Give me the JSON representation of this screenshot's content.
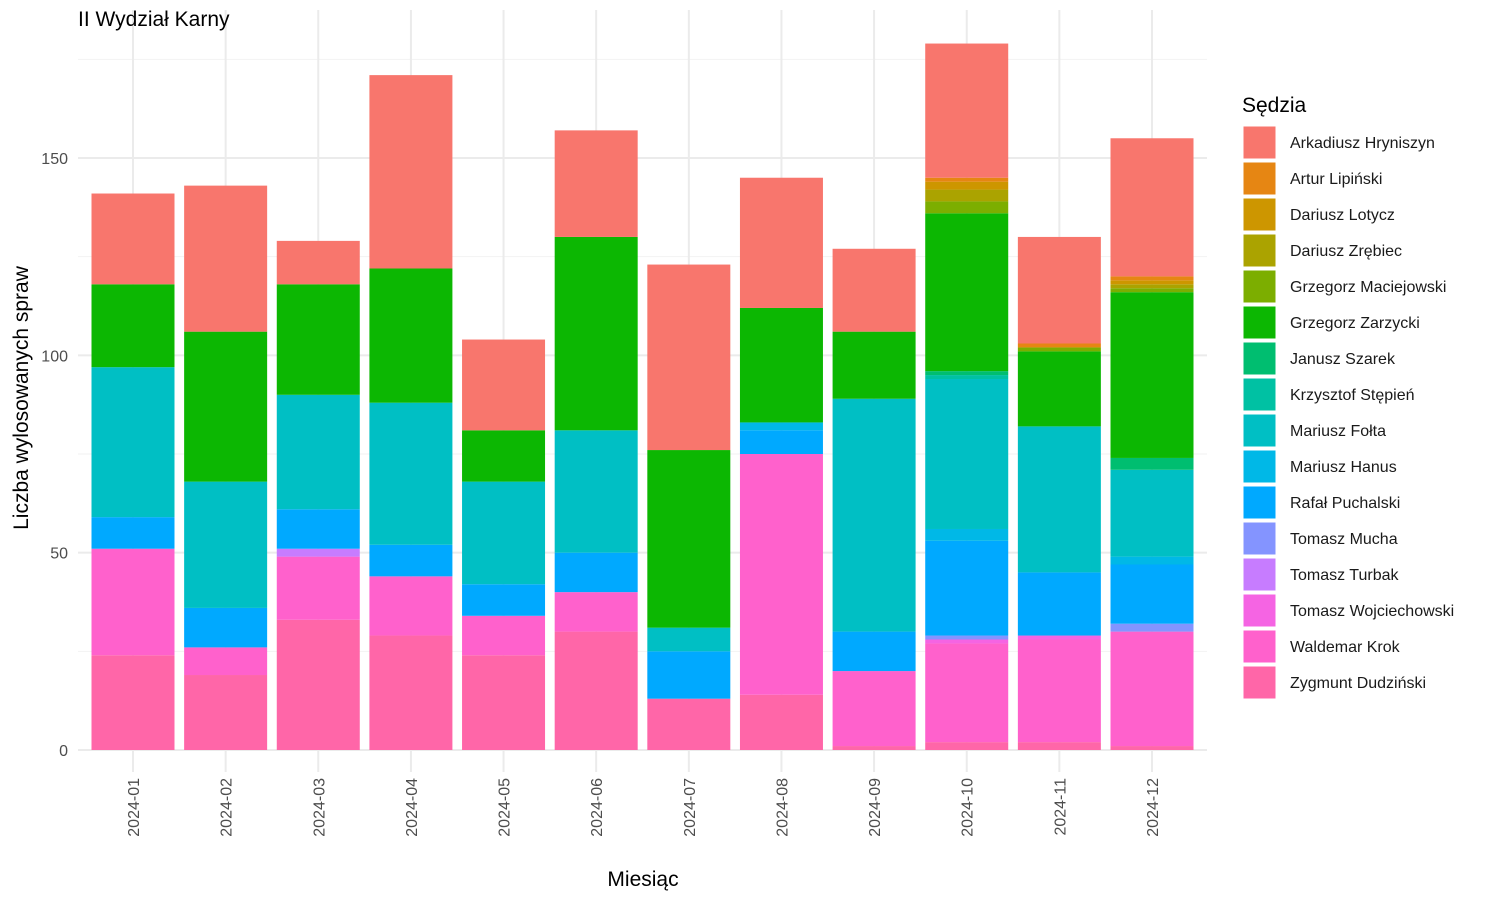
{
  "chart_data": {
    "type": "bar",
    "stacked": true,
    "title": "II Wydział Karny",
    "xlabel": "Miesiąc",
    "ylabel": "Liczba wylosowanych spraw",
    "ylim": [
      0,
      180
    ],
    "yticks": [
      0,
      50,
      100,
      150
    ],
    "grid": true,
    "legend_position": "right",
    "legend_title": "Sędzia",
    "categories": [
      "2024-01",
      "2024-02",
      "2024-03",
      "2024-04",
      "2024-05",
      "2024-06",
      "2024-07",
      "2024-08",
      "2024-09",
      "2024-10",
      "2024-11",
      "2024-12"
    ],
    "series": [
      {
        "name": "Zygmunt Dudziński",
        "color": "#FF66A8",
        "values": [
          24,
          19,
          33,
          29,
          24,
          30,
          13,
          14,
          1,
          2,
          2,
          1
        ]
      },
      {
        "name": "Waldemar Krok",
        "color": "#FF61CC",
        "values": [
          27,
          7,
          16,
          15,
          10,
          10,
          0,
          61,
          19,
          25,
          26,
          29
        ]
      },
      {
        "name": "Tomasz Wojciechowski",
        "color": "#F564E3",
        "values": [
          0,
          0,
          0,
          0,
          0,
          0,
          0,
          0,
          0,
          1,
          1,
          0
        ]
      },
      {
        "name": "Tomasz Turbak",
        "color": "#C77CFF",
        "values": [
          0,
          0,
          2,
          0,
          0,
          0,
          0,
          0,
          0,
          0,
          0,
          0
        ]
      },
      {
        "name": "Tomasz Mucha",
        "color": "#8494FF",
        "values": [
          0,
          0,
          0,
          0,
          0,
          0,
          0,
          0,
          0,
          1,
          0,
          2
        ]
      },
      {
        "name": "Rafał Puchalski",
        "color": "#00A9FF",
        "values": [
          8,
          10,
          10,
          8,
          8,
          10,
          12,
          6,
          10,
          24,
          16,
          15
        ]
      },
      {
        "name": "Mariusz Hanus",
        "color": "#00B8E7",
        "values": [
          0,
          0,
          0,
          0,
          0,
          0,
          0,
          2,
          0,
          3,
          0,
          2
        ]
      },
      {
        "name": "Mariusz Fołta",
        "color": "#00BFC4",
        "values": [
          38,
          32,
          29,
          36,
          26,
          31,
          6,
          0,
          59,
          38,
          37,
          22
        ]
      },
      {
        "name": "Krzysztof Stępień",
        "color": "#00C1A3",
        "values": [
          0,
          0,
          0,
          0,
          0,
          0,
          0,
          0,
          0,
          1,
          0,
          0
        ]
      },
      {
        "name": "Janusz Szarek",
        "color": "#00BE70",
        "values": [
          0,
          0,
          0,
          0,
          0,
          0,
          0,
          0,
          0,
          1,
          0,
          3
        ]
      },
      {
        "name": "Grzegorz Zarzycki",
        "color": "#0CB702",
        "values": [
          21,
          38,
          28,
          34,
          13,
          49,
          45,
          29,
          17,
          40,
          19,
          42
        ]
      },
      {
        "name": "Grzegorz Maciejowski",
        "color": "#7CAE00",
        "values": [
          0,
          0,
          0,
          0,
          0,
          0,
          0,
          0,
          0,
          3,
          1,
          1
        ]
      },
      {
        "name": "Dariusz Zrębiec",
        "color": "#ABA300",
        "values": [
          0,
          0,
          0,
          0,
          0,
          0,
          0,
          0,
          0,
          3,
          0,
          1
        ]
      },
      {
        "name": "Dariusz Lotycz",
        "color": "#CD9600",
        "values": [
          0,
          0,
          0,
          0,
          0,
          0,
          0,
          0,
          0,
          2,
          0,
          1
        ]
      },
      {
        "name": "Artur Lipiński",
        "color": "#E68613",
        "values": [
          0,
          0,
          0,
          0,
          0,
          0,
          0,
          0,
          0,
          1,
          1,
          1
        ]
      },
      {
        "name": "Arkadiusz Hryniszyn",
        "color": "#F8766D",
        "values": [
          23,
          37,
          11,
          49,
          23,
          27,
          47,
          33,
          21,
          34,
          27,
          35
        ]
      }
    ],
    "legend_order": [
      "Arkadiusz Hryniszyn",
      "Artur Lipiński",
      "Dariusz Lotycz",
      "Dariusz Zrębiec",
      "Grzegorz Maciejowski",
      "Grzegorz Zarzycki",
      "Janusz Szarek",
      "Krzysztof Stępień",
      "Mariusz Fołta",
      "Mariusz Hanus",
      "Rafał Puchalski",
      "Tomasz Mucha",
      "Tomasz Turbak",
      "Tomasz Wojciechowski",
      "Waldemar Krok",
      "Zygmunt Dudziński"
    ]
  }
}
